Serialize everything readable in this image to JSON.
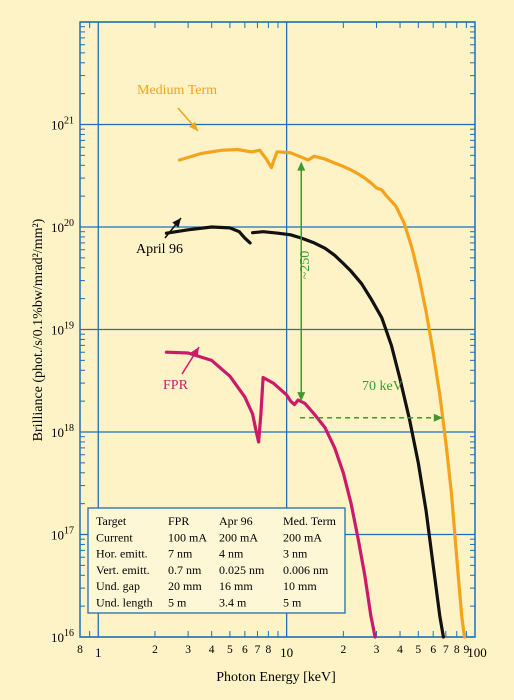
{
  "chart_data": {
    "type": "line",
    "xlabel": "Photon Energy [keV]",
    "ylabel": "Brilliance (phot./s/0.1%bw/mrad²/mm²)",
    "x_scale": "log",
    "y_scale": "log",
    "xlim": [
      0.8,
      100
    ],
    "ylim": [
      1e+16,
      1e+22
    ],
    "grid": true,
    "x_tick_labels": [
      "8",
      "1",
      "2",
      "3",
      "4",
      "5",
      "6",
      "7",
      "8",
      "10",
      "2",
      "3",
      "4",
      "5",
      "6",
      "7",
      "8",
      "9",
      "100"
    ],
    "y_tick_labels": [
      {
        "base": "10",
        "exp": "16"
      },
      {
        "base": "10",
        "exp": "17"
      },
      {
        "base": "10",
        "exp": "18"
      },
      {
        "base": "10",
        "exp": "19"
      },
      {
        "base": "10",
        "exp": "20"
      },
      {
        "base": "10",
        "exp": "21"
      }
    ],
    "series": [
      {
        "name": "Medium Term",
        "color": "#f5a21c",
        "segments": [
          [
            [
              2.7,
              4.5e+20
            ],
            [
              3.5,
              5.2e+20
            ],
            [
              4.5,
              5.6e+20
            ],
            [
              5.5,
              5.7e+20
            ],
            [
              6.5,
              5.4e+20
            ],
            [
              7.2,
              5.6e+20
            ]
          ],
          [
            [
              7.2,
              5.6e+20
            ],
            [
              7.8,
              4.6e+20
            ],
            [
              8.3,
              3.8e+20
            ],
            [
              8.6,
              4.6e+20
            ],
            [
              8.9,
              5.4e+20
            ]
          ],
          [
            [
              9.1,
              5.4e+20
            ],
            [
              10.5,
              5.3e+20
            ],
            [
              12.0,
              4.8e+20
            ],
            [
              13.0,
              4.5e+20
            ],
            [
              14.0,
              4.9e+20
            ],
            [
              16.0,
              4.6e+20
            ],
            [
              18.0,
              4.2e+20
            ],
            [
              20.0,
              3.9e+20
            ],
            [
              22.0,
              3.6e+20
            ],
            [
              24.0,
              3.3e+20
            ],
            [
              26.0,
              3e+20
            ],
            [
              28.0,
              2.7e+20
            ],
            [
              30.0,
              2.4e+20
            ],
            [
              32.0,
              2.3e+20
            ],
            [
              34.0,
              2e+20
            ],
            [
              38.0,
              1.6e+20
            ],
            [
              42.0,
              1.1e+20
            ],
            [
              46.0,
              6.5e+19
            ],
            [
              50.0,
              3.5e+19
            ],
            [
              55.0,
              1.5e+19
            ],
            [
              60.0,
              6e+18
            ],
            [
              65.0,
              2.3e+18
            ],
            [
              70.0,
              8e+17
            ],
            [
              75.0,
              2.5e+17
            ],
            [
              80.0,
              6e+16
            ],
            [
              85.0,
              1.6e+16
            ],
            [
              88.0,
              1e+16
            ]
          ]
        ]
      },
      {
        "name": "April 96",
        "color": "#111111",
        "segments": [
          [
            [
              2.3,
              8.7e+19
            ],
            [
              3.0,
              9.4e+19
            ],
            [
              4.0,
              1e+20
            ],
            [
              5.0,
              9.8e+19
            ],
            [
              5.6,
              9e+19
            ],
            [
              6.0,
              7.8e+19
            ],
            [
              6.4,
              7e+19
            ]
          ],
          [
            [
              6.6,
              8.8e+19
            ],
            [
              7.5,
              9e+19
            ],
            [
              9.0,
              8.7e+19
            ],
            [
              10.5,
              8.4e+19
            ],
            [
              12.0,
              7.8e+19
            ],
            [
              14.0,
              7e+19
            ],
            [
              16.0,
              6.2e+19
            ],
            [
              18.0,
              5.3e+19
            ],
            [
              20.0,
              4.4e+19
            ],
            [
              22.0,
              3.7e+19
            ],
            [
              25.0,
              2.8e+19
            ],
            [
              28.0,
              2e+19
            ],
            [
              32.0,
              1.3e+19
            ],
            [
              36.0,
              7e+18
            ],
            [
              40.0,
              3.3e+18
            ],
            [
              45.0,
              1.3e+18
            ],
            [
              50.0,
              5e+17
            ],
            [
              55.0,
              1.7e+17
            ],
            [
              60.0,
              5e+16
            ],
            [
              65.0,
              1.6e+16
            ],
            [
              68.0,
              1e+16
            ]
          ]
        ]
      },
      {
        "name": "FPR",
        "color": "#cc1a6a",
        "segments": [
          [
            [
              2.3,
              6e+18
            ],
            [
              3.0,
              5.9e+18
            ],
            [
              4.0,
              5e+18
            ],
            [
              5.0,
              3.5e+18
            ],
            [
              6.0,
              2.2e+18
            ],
            [
              6.6,
              1.5e+18
            ],
            [
              6.9,
              1e+18
            ],
            [
              7.1,
              8e+17
            ]
          ],
          [
            [
              7.1,
              8e+17
            ],
            [
              7.3,
              1.5e+18
            ],
            [
              7.5,
              3.4e+18
            ],
            [
              8.5,
              3e+18
            ],
            [
              10.0,
              2.3e+18
            ],
            [
              10.5,
              2e+18
            ],
            [
              11.0,
              1.85e+18
            ],
            [
              11.5,
              2.05e+18
            ],
            [
              12.5,
              1.9e+18
            ],
            [
              14.0,
              1.5e+18
            ],
            [
              16.0,
              1.1e+18
            ],
            [
              18.0,
              7e+17
            ],
            [
              20.0,
              4e+17
            ],
            [
              22.0,
              2e+17
            ],
            [
              24.0,
              9e+16
            ],
            [
              26.0,
              4e+16
            ],
            [
              28.0,
              1.6e+16
            ],
            [
              29.5,
              1e+16
            ]
          ]
        ]
      }
    ],
    "annotations": [
      {
        "text": "Medium Term",
        "color": "#f5a21c"
      },
      {
        "text": "April 96",
        "color": "#111111"
      },
      {
        "text": "FPR",
        "color": "#cc1a6a"
      },
      {
        "text": "~250",
        "color": "#3d9a2c",
        "from": [
          10.2,
          2e+18
        ],
        "to": [
          10.2,
          5.2e+20
        ]
      },
      {
        "text": "70 keV",
        "color": "#3d9a2c",
        "from": [
          11.5,
          1.65e+18
        ],
        "to": [
          70,
          1.65e+18
        ]
      }
    ],
    "table": {
      "headers": [
        "Target",
        "FPR",
        "Apr 96",
        "Med. Term"
      ],
      "rows": [
        [
          "Current",
          "100 mA",
          "200 mA",
          "200 mA"
        ],
        [
          "Hor. emitt.",
          "7 nm",
          "4 nm",
          "3 nm"
        ],
        [
          "Vert. emitt.",
          "0.7 nm",
          "0.025 nm",
          "0.006 nm"
        ],
        [
          "Und. gap",
          "20 mm",
          "16 mm",
          "10 mm"
        ],
        [
          "Und. length",
          "5 m",
          "3.4 m",
          "5 m"
        ]
      ]
    },
    "colors": {
      "background": "#fdf3c6",
      "grid": "#1f6fb8",
      "table_fill": "#fef7d6",
      "arrow": "#3d9a2c"
    }
  }
}
